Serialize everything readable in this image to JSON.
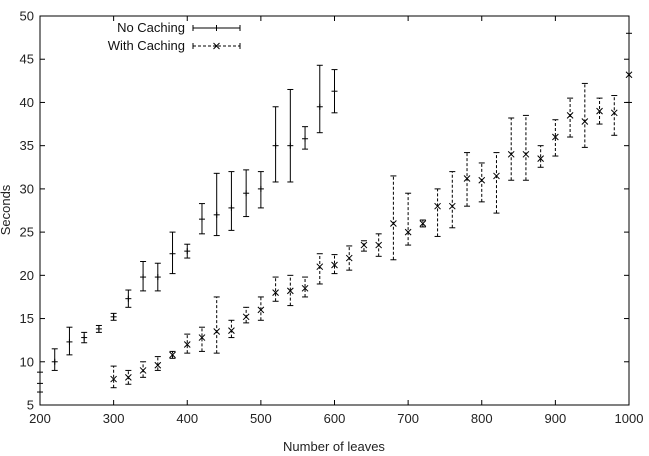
{
  "chart_data": {
    "type": "scatter",
    "title": "",
    "xlabel": "Number of leaves",
    "ylabel": "Seconds",
    "xlim": [
      200,
      1000
    ],
    "ylim": [
      5,
      50
    ],
    "xticks": [
      200,
      300,
      400,
      500,
      600,
      700,
      800,
      900,
      1000
    ],
    "yticks": [
      5,
      10,
      15,
      20,
      25,
      30,
      35,
      40,
      45,
      50
    ],
    "grid": false,
    "legend_position": "top-left",
    "error_bars": true,
    "series": [
      {
        "name": "No Caching",
        "marker": "+",
        "errorbar_style": "solid",
        "points": [
          {
            "x": 200,
            "y": 7.5,
            "ylow": 6.5,
            "yhigh": 8.8
          },
          {
            "x": 220,
            "y": 10.0,
            "ylow": 9.0,
            "yhigh": 11.5
          },
          {
            "x": 240,
            "y": 12.3,
            "ylow": 10.8,
            "yhigh": 14.0
          },
          {
            "x": 260,
            "y": 12.8,
            "ylow": 12.2,
            "yhigh": 13.4
          },
          {
            "x": 280,
            "y": 13.8,
            "ylow": 13.4,
            "yhigh": 14.2
          },
          {
            "x": 300,
            "y": 15.2,
            "ylow": 14.8,
            "yhigh": 15.6
          },
          {
            "x": 320,
            "y": 17.3,
            "ylow": 16.3,
            "yhigh": 18.3
          },
          {
            "x": 340,
            "y": 19.8,
            "ylow": 18.2,
            "yhigh": 21.6
          },
          {
            "x": 360,
            "y": 19.8,
            "ylow": 18.2,
            "yhigh": 21.4
          },
          {
            "x": 380,
            "y": 22.5,
            "ylow": 20.2,
            "yhigh": 25.0
          },
          {
            "x": 400,
            "y": 22.8,
            "ylow": 22.0,
            "yhigh": 23.6
          },
          {
            "x": 420,
            "y": 26.5,
            "ylow": 24.8,
            "yhigh": 28.3
          },
          {
            "x": 440,
            "y": 27.0,
            "ylow": 24.6,
            "yhigh": 31.8
          },
          {
            "x": 460,
            "y": 27.8,
            "ylow": 25.2,
            "yhigh": 32.0
          },
          {
            "x": 480,
            "y": 29.5,
            "ylow": 26.8,
            "yhigh": 32.2
          },
          {
            "x": 500,
            "y": 30.0,
            "ylow": 27.8,
            "yhigh": 32.0
          },
          {
            "x": 520,
            "y": 35.0,
            "ylow": 30.8,
            "yhigh": 39.5
          },
          {
            "x": 540,
            "y": 35.0,
            "ylow": 30.8,
            "yhigh": 41.5
          },
          {
            "x": 560,
            "y": 35.8,
            "ylow": 34.6,
            "yhigh": 37.2
          },
          {
            "x": 580,
            "y": 39.5,
            "ylow": 36.5,
            "yhigh": 44.3
          },
          {
            "x": 600,
            "y": 41.3,
            "ylow": 38.8,
            "yhigh": 43.8
          }
        ]
      },
      {
        "name": "With Caching",
        "marker": "x",
        "errorbar_style": "dashed",
        "points": [
          {
            "x": 300,
            "y": 8.0,
            "ylow": 7.0,
            "yhigh": 9.5
          },
          {
            "x": 320,
            "y": 8.2,
            "ylow": 7.4,
            "yhigh": 9.0
          },
          {
            "x": 340,
            "y": 9.0,
            "ylow": 8.2,
            "yhigh": 10.0
          },
          {
            "x": 360,
            "y": 9.6,
            "ylow": 9.0,
            "yhigh": 10.6
          },
          {
            "x": 380,
            "y": 10.8,
            "ylow": 10.4,
            "yhigh": 11.2
          },
          {
            "x": 400,
            "y": 12.0,
            "ylow": 11.0,
            "yhigh": 13.2
          },
          {
            "x": 420,
            "y": 12.8,
            "ylow": 11.2,
            "yhigh": 14.0
          },
          {
            "x": 440,
            "y": 13.5,
            "ylow": 11.0,
            "yhigh": 17.5
          },
          {
            "x": 460,
            "y": 13.6,
            "ylow": 12.8,
            "yhigh": 14.8
          },
          {
            "x": 480,
            "y": 15.2,
            "ylow": 14.5,
            "yhigh": 16.3
          },
          {
            "x": 500,
            "y": 16.0,
            "ylow": 14.8,
            "yhigh": 17.5
          },
          {
            "x": 520,
            "y": 18.0,
            "ylow": 17.0,
            "yhigh": 19.8
          },
          {
            "x": 540,
            "y": 18.2,
            "ylow": 16.5,
            "yhigh": 20.0
          },
          {
            "x": 560,
            "y": 18.5,
            "ylow": 17.5,
            "yhigh": 19.8
          },
          {
            "x": 580,
            "y": 21.0,
            "ylow": 19.0,
            "yhigh": 22.5
          },
          {
            "x": 600,
            "y": 21.2,
            "ylow": 20.2,
            "yhigh": 22.4
          },
          {
            "x": 620,
            "y": 22.0,
            "ylow": 20.6,
            "yhigh": 23.4
          },
          {
            "x": 640,
            "y": 23.5,
            "ylow": 22.8,
            "yhigh": 24.0
          },
          {
            "x": 660,
            "y": 23.5,
            "ylow": 22.2,
            "yhigh": 24.8
          },
          {
            "x": 680,
            "y": 26.0,
            "ylow": 21.8,
            "yhigh": 31.5
          },
          {
            "x": 700,
            "y": 25.0,
            "ylow": 23.5,
            "yhigh": 29.5
          },
          {
            "x": 720,
            "y": 26.0,
            "ylow": 25.6,
            "yhigh": 26.4
          },
          {
            "x": 740,
            "y": 28.0,
            "ylow": 24.5,
            "yhigh": 30.0
          },
          {
            "x": 760,
            "y": 28.0,
            "ylow": 25.5,
            "yhigh": 32.0
          },
          {
            "x": 780,
            "y": 31.2,
            "ylow": 28.0,
            "yhigh": 34.2
          },
          {
            "x": 800,
            "y": 31.0,
            "ylow": 28.5,
            "yhigh": 33.0
          },
          {
            "x": 820,
            "y": 31.5,
            "ylow": 27.2,
            "yhigh": 34.2
          },
          {
            "x": 840,
            "y": 34.0,
            "ylow": 31.0,
            "yhigh": 38.2
          },
          {
            "x": 860,
            "y": 34.0,
            "ylow": 31.0,
            "yhigh": 38.5
          },
          {
            "x": 880,
            "y": 33.5,
            "ylow": 32.5,
            "yhigh": 35.0
          },
          {
            "x": 900,
            "y": 36.0,
            "ylow": 33.8,
            "yhigh": 38.0
          },
          {
            "x": 920,
            "y": 38.5,
            "ylow": 36.0,
            "yhigh": 40.5
          },
          {
            "x": 940,
            "y": 37.8,
            "ylow": 34.8,
            "yhigh": 42.2
          },
          {
            "x": 960,
            "y": 39.0,
            "ylow": 37.5,
            "yhigh": 40.5
          },
          {
            "x": 980,
            "y": 38.8,
            "ylow": 36.2,
            "yhigh": 40.8
          },
          {
            "x": 1000,
            "y": 43.2,
            "ylow": 40.0,
            "yhigh": 48.0
          }
        ]
      }
    ]
  }
}
